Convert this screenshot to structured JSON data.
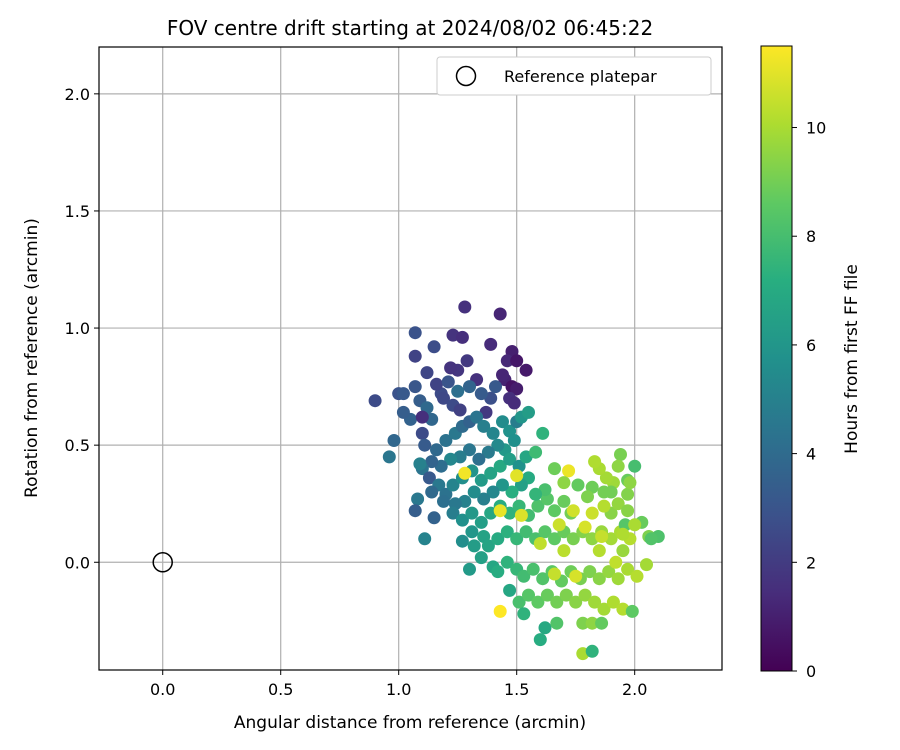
{
  "chart_data": {
    "type": "scatter",
    "title": "FOV centre drift starting at 2024/08/02 06:45:22",
    "xlabel": "Angular distance from reference (arcmin)",
    "ylabel": "Rotation from reference (arcmin)",
    "xlim": [
      -0.27,
      2.37
    ],
    "ylim": [
      -0.46,
      2.2
    ],
    "xticks": [
      "0.0",
      "0.5",
      "1.0",
      "1.5",
      "2.0"
    ],
    "yticks": [
      "0.0",
      "0.5",
      "1.0",
      "1.5",
      "2.0"
    ],
    "grid": true,
    "legend": {
      "position": "top-right",
      "entries": [
        {
          "label": "Reference platepar",
          "marker": "open-circle"
        }
      ]
    },
    "reference_point": {
      "x": 0.0,
      "y": 0.0
    },
    "colorbar": {
      "label": "Hours from first FF file",
      "min": 0,
      "max": 11.5,
      "ticks": [
        "0",
        "2",
        "4",
        "6",
        "8",
        "10"
      ],
      "colormap": "viridis"
    },
    "points": [
      [
        1.28,
        1.09,
        1.6
      ],
      [
        1.43,
        1.06,
        1.2
      ],
      [
        1.23,
        0.97,
        1.7
      ],
      [
        1.27,
        0.96,
        1.5
      ],
      [
        1.39,
        0.93,
        1.4
      ],
      [
        1.48,
        0.9,
        1.0
      ],
      [
        1.46,
        0.86,
        1.3
      ],
      [
        1.29,
        0.86,
        1.9
      ],
      [
        1.5,
        0.86,
        0.7
      ],
      [
        1.54,
        0.82,
        0.8
      ],
      [
        1.25,
        0.82,
        1.8
      ],
      [
        1.45,
        0.78,
        1.1
      ],
      [
        1.48,
        0.75,
        0.6
      ],
      [
        1.5,
        0.74,
        0.9
      ],
      [
        1.33,
        0.78,
        1.6
      ],
      [
        1.44,
        0.8,
        1.2
      ],
      [
        1.22,
        0.83,
        1.7
      ],
      [
        1.18,
        0.72,
        2.6
      ],
      [
        1.07,
        0.98,
        2.9
      ],
      [
        1.15,
        0.92,
        2.7
      ],
      [
        1.07,
        0.88,
        2.3
      ],
      [
        1.12,
        0.81,
        2.4
      ],
      [
        1.07,
        0.75,
        3.1
      ],
      [
        1.0,
        0.72,
        2.9
      ],
      [
        1.02,
        0.72,
        3.2
      ],
      [
        1.16,
        0.76,
        2.3
      ],
      [
        1.19,
        0.7,
        2.5
      ],
      [
        1.23,
        0.67,
        2.6
      ],
      [
        1.26,
        0.65,
        2.2
      ],
      [
        1.21,
        0.77,
        3.0
      ],
      [
        1.37,
        0.64,
        1.9
      ],
      [
        1.39,
        0.7,
        2.8
      ],
      [
        1.47,
        0.7,
        1.5
      ],
      [
        1.49,
        0.68,
        1.4
      ],
      [
        1.41,
        0.75,
        3.2
      ],
      [
        1.35,
        0.72,
        3.3
      ],
      [
        1.25,
        0.73,
        4.2
      ],
      [
        1.3,
        0.75,
        3.7
      ],
      [
        0.9,
        0.69,
        2.6
      ],
      [
        1.09,
        0.69,
        3.4
      ],
      [
        1.12,
        0.66,
        3.9
      ],
      [
        1.14,
        0.61,
        3.8
      ],
      [
        1.1,
        0.55,
        2.6
      ],
      [
        1.05,
        0.61,
        3.6
      ],
      [
        1.1,
        0.62,
        1.5
      ],
      [
        1.02,
        0.64,
        3.4
      ],
      [
        0.98,
        0.52,
        3.8
      ],
      [
        0.96,
        0.45,
        4.5
      ],
      [
        1.11,
        0.5,
        3.3
      ],
      [
        1.16,
        0.48,
        3.9
      ],
      [
        1.2,
        0.52,
        4.3
      ],
      [
        1.24,
        0.55,
        4.6
      ],
      [
        1.27,
        0.58,
        4.0
      ],
      [
        1.3,
        0.6,
        3.6
      ],
      [
        1.33,
        0.62,
        4.4
      ],
      [
        1.36,
        0.58,
        4.9
      ],
      [
        1.4,
        0.55,
        5.2
      ],
      [
        1.44,
        0.6,
        5.5
      ],
      [
        1.47,
        0.56,
        5.8
      ],
      [
        1.5,
        0.6,
        4.8
      ],
      [
        1.52,
        0.62,
        6.0
      ],
      [
        1.55,
        0.64,
        6.3
      ],
      [
        1.49,
        0.52,
        5.7
      ],
      [
        1.45,
        0.48,
        6.1
      ],
      [
        1.42,
        0.5,
        5.4
      ],
      [
        1.38,
        0.47,
        4.7
      ],
      [
        1.34,
        0.44,
        4.2
      ],
      [
        1.3,
        0.48,
        4.5
      ],
      [
        1.26,
        0.45,
        4.8
      ],
      [
        1.22,
        0.44,
        5.3
      ],
      [
        1.18,
        0.41,
        4.1
      ],
      [
        1.14,
        0.43,
        3.7
      ],
      [
        1.1,
        0.4,
        4.4
      ],
      [
        1.09,
        0.42,
        5.0
      ],
      [
        1.13,
        0.36,
        3.2
      ],
      [
        1.17,
        0.33,
        4.6
      ],
      [
        1.14,
        0.3,
        3.9
      ],
      [
        1.2,
        0.29,
        4.3
      ],
      [
        1.23,
        0.33,
        5.1
      ],
      [
        1.27,
        0.36,
        5.6
      ],
      [
        1.31,
        0.39,
        5.9
      ],
      [
        1.35,
        0.35,
        6.2
      ],
      [
        1.39,
        0.38,
        6.6
      ],
      [
        1.43,
        0.41,
        6.9
      ],
      [
        1.47,
        0.44,
        6.4
      ],
      [
        1.51,
        0.41,
        5.8
      ],
      [
        1.54,
        0.45,
        6.8
      ],
      [
        1.58,
        0.47,
        7.8
      ],
      [
        1.61,
        0.55,
        7.4
      ],
      [
        1.55,
        0.36,
        7.0
      ],
      [
        1.52,
        0.33,
        6.5
      ],
      [
        1.48,
        0.3,
        7.2
      ],
      [
        1.44,
        0.33,
        6.0
      ],
      [
        1.4,
        0.3,
        5.3
      ],
      [
        1.36,
        0.27,
        4.9
      ],
      [
        1.32,
        0.3,
        5.5
      ],
      [
        1.28,
        0.26,
        5.0
      ],
      [
        1.24,
        0.25,
        4.6
      ],
      [
        1.19,
        0.26,
        4.2
      ],
      [
        1.08,
        0.27,
        4.6
      ],
      [
        1.07,
        0.22,
        3.4
      ],
      [
        1.11,
        0.1,
        5.1
      ],
      [
        1.15,
        0.19,
        3.6
      ],
      [
        1.23,
        0.21,
        4.8
      ],
      [
        1.27,
        0.18,
        5.7
      ],
      [
        1.31,
        0.21,
        6.1
      ],
      [
        1.35,
        0.17,
        6.4
      ],
      [
        1.39,
        0.21,
        6.8
      ],
      [
        1.43,
        0.24,
        7.1
      ],
      [
        1.47,
        0.21,
        7.4
      ],
      [
        1.51,
        0.24,
        7.6
      ],
      [
        1.55,
        0.2,
        7.9
      ],
      [
        1.59,
        0.24,
        8.2
      ],
      [
        1.63,
        0.27,
        8.4
      ],
      [
        1.66,
        0.22,
        8.6
      ],
      [
        1.7,
        0.26,
        8.8
      ],
      [
        1.73,
        0.21,
        9.0
      ],
      [
        1.36,
        0.11,
        6.6
      ],
      [
        1.31,
        0.13,
        6.0
      ],
      [
        1.27,
        0.09,
        5.6
      ],
      [
        1.32,
        0.07,
        6.3
      ],
      [
        1.38,
        0.07,
        6.7
      ],
      [
        1.42,
        0.1,
        7.0
      ],
      [
        1.46,
        0.13,
        7.3
      ],
      [
        1.5,
        0.1,
        7.6
      ],
      [
        1.54,
        0.13,
        7.9
      ],
      [
        1.58,
        0.1,
        8.1
      ],
      [
        1.62,
        0.13,
        8.4
      ],
      [
        1.66,
        0.1,
        8.6
      ],
      [
        1.7,
        0.13,
        8.8
      ],
      [
        1.74,
        0.1,
        9.1
      ],
      [
        1.78,
        0.13,
        9.3
      ],
      [
        1.82,
        0.1,
        9.5
      ],
      [
        1.86,
        0.13,
        9.7
      ],
      [
        1.9,
        0.1,
        9.9
      ],
      [
        1.94,
        0.13,
        10.0
      ],
      [
        1.98,
        0.1,
        10.2
      ],
      [
        1.3,
        -0.03,
        6.2
      ],
      [
        1.35,
        0.02,
        6.5
      ],
      [
        1.4,
        -0.02,
        6.8
      ],
      [
        1.42,
        -0.04,
        7.1
      ],
      [
        1.46,
        0.0,
        7.4
      ],
      [
        1.5,
        -0.03,
        7.6
      ],
      [
        1.53,
        -0.06,
        7.9
      ],
      [
        1.57,
        -0.03,
        8.1
      ],
      [
        1.61,
        -0.07,
        8.3
      ],
      [
        1.65,
        -0.04,
        8.5
      ],
      [
        1.69,
        -0.08,
        8.7
      ],
      [
        1.73,
        -0.04,
        8.9
      ],
      [
        1.77,
        -0.07,
        9.1
      ],
      [
        1.81,
        -0.04,
        9.2
      ],
      [
        1.85,
        -0.07,
        9.4
      ],
      [
        1.89,
        -0.04,
        9.6
      ],
      [
        1.93,
        -0.07,
        9.8
      ],
      [
        1.97,
        -0.03,
        10.0
      ],
      [
        2.01,
        -0.06,
        10.2
      ],
      [
        2.05,
        -0.01,
        9.9
      ],
      [
        1.47,
        -0.12,
        6.8
      ],
      [
        1.51,
        -0.17,
        8.1
      ],
      [
        1.55,
        -0.14,
        8.4
      ],
      [
        1.59,
        -0.17,
        8.6
      ],
      [
        1.63,
        -0.14,
        8.8
      ],
      [
        1.67,
        -0.17,
        9.0
      ],
      [
        1.71,
        -0.14,
        9.2
      ],
      [
        1.75,
        -0.17,
        9.4
      ],
      [
        1.79,
        -0.14,
        9.6
      ],
      [
        1.83,
        -0.17,
        9.8
      ],
      [
        1.87,
        -0.2,
        9.9
      ],
      [
        1.91,
        -0.17,
        10.1
      ],
      [
        1.95,
        -0.2,
        10.2
      ],
      [
        1.99,
        -0.21,
        8.6
      ],
      [
        1.53,
        -0.22,
        7.4
      ],
      [
        1.62,
        -0.28,
        6.9
      ],
      [
        1.6,
        -0.33,
        7.1
      ],
      [
        1.67,
        -0.26,
        8.3
      ],
      [
        1.78,
        -0.26,
        9.2
      ],
      [
        1.82,
        -0.26,
        9.5
      ],
      [
        1.86,
        -0.26,
        8.7
      ],
      [
        1.78,
        -0.39,
        10.0
      ],
      [
        1.82,
        -0.38,
        7.4
      ],
      [
        1.43,
        -0.21,
        11.5
      ],
      [
        1.28,
        0.38,
        11.3
      ],
      [
        1.43,
        0.22,
        11.1
      ],
      [
        1.5,
        0.37,
        11.0
      ],
      [
        1.52,
        0.2,
        10.9
      ],
      [
        1.72,
        0.39,
        11.2
      ],
      [
        1.74,
        0.22,
        10.7
      ],
      [
        1.82,
        0.21,
        10.6
      ],
      [
        1.79,
        0.15,
        10.8
      ],
      [
        1.86,
        0.11,
        10.5
      ],
      [
        1.68,
        0.16,
        10.6
      ],
      [
        1.6,
        0.08,
        10.4
      ],
      [
        1.7,
        0.05,
        10.3
      ],
      [
        1.85,
        0.05,
        10.2
      ],
      [
        1.66,
        -0.05,
        10.5
      ],
      [
        1.75,
        -0.06,
        10.8
      ],
      [
        1.92,
        0.0,
        10.4
      ],
      [
        1.95,
        0.05,
        9.7
      ],
      [
        1.96,
        0.16,
        8.4
      ],
      [
        1.97,
        0.29,
        9.3
      ],
      [
        1.97,
        0.35,
        8.8
      ],
      [
        1.94,
        0.46,
        9.1
      ],
      [
        2.0,
        0.41,
        8.0
      ],
      [
        1.98,
        0.34,
        9.5
      ],
      [
        1.91,
        0.34,
        9.8
      ],
      [
        1.87,
        0.3,
        9.0
      ],
      [
        1.82,
        0.32,
        8.9
      ],
      [
        1.8,
        0.28,
        9.2
      ],
      [
        1.76,
        0.33,
        8.7
      ],
      [
        1.7,
        0.34,
        9.5
      ],
      [
        1.66,
        0.4,
        8.9
      ],
      [
        1.62,
        0.31,
        8.1
      ],
      [
        1.58,
        0.29,
        7.5
      ],
      [
        1.95,
        0.12,
        10.1
      ],
      [
        2.03,
        0.17,
        8.8
      ],
      [
        2.06,
        0.11,
        9.2
      ],
      [
        2.1,
        0.11,
        8.2
      ],
      [
        2.0,
        0.16,
        10.0
      ],
      [
        1.9,
        0.21,
        9.4
      ],
      [
        1.87,
        0.24,
        10.2
      ],
      [
        1.93,
        0.25,
        9.6
      ],
      [
        1.9,
        0.3,
        9.0
      ],
      [
        1.88,
        0.36,
        9.9
      ],
      [
        1.85,
        0.4,
        10.0
      ],
      [
        1.83,
        0.43,
        10.1
      ],
      [
        1.93,
        0.41,
        9.5
      ],
      [
        1.97,
        0.22,
        9.4
      ],
      [
        2.07,
        0.1,
        8.3
      ]
    ]
  }
}
